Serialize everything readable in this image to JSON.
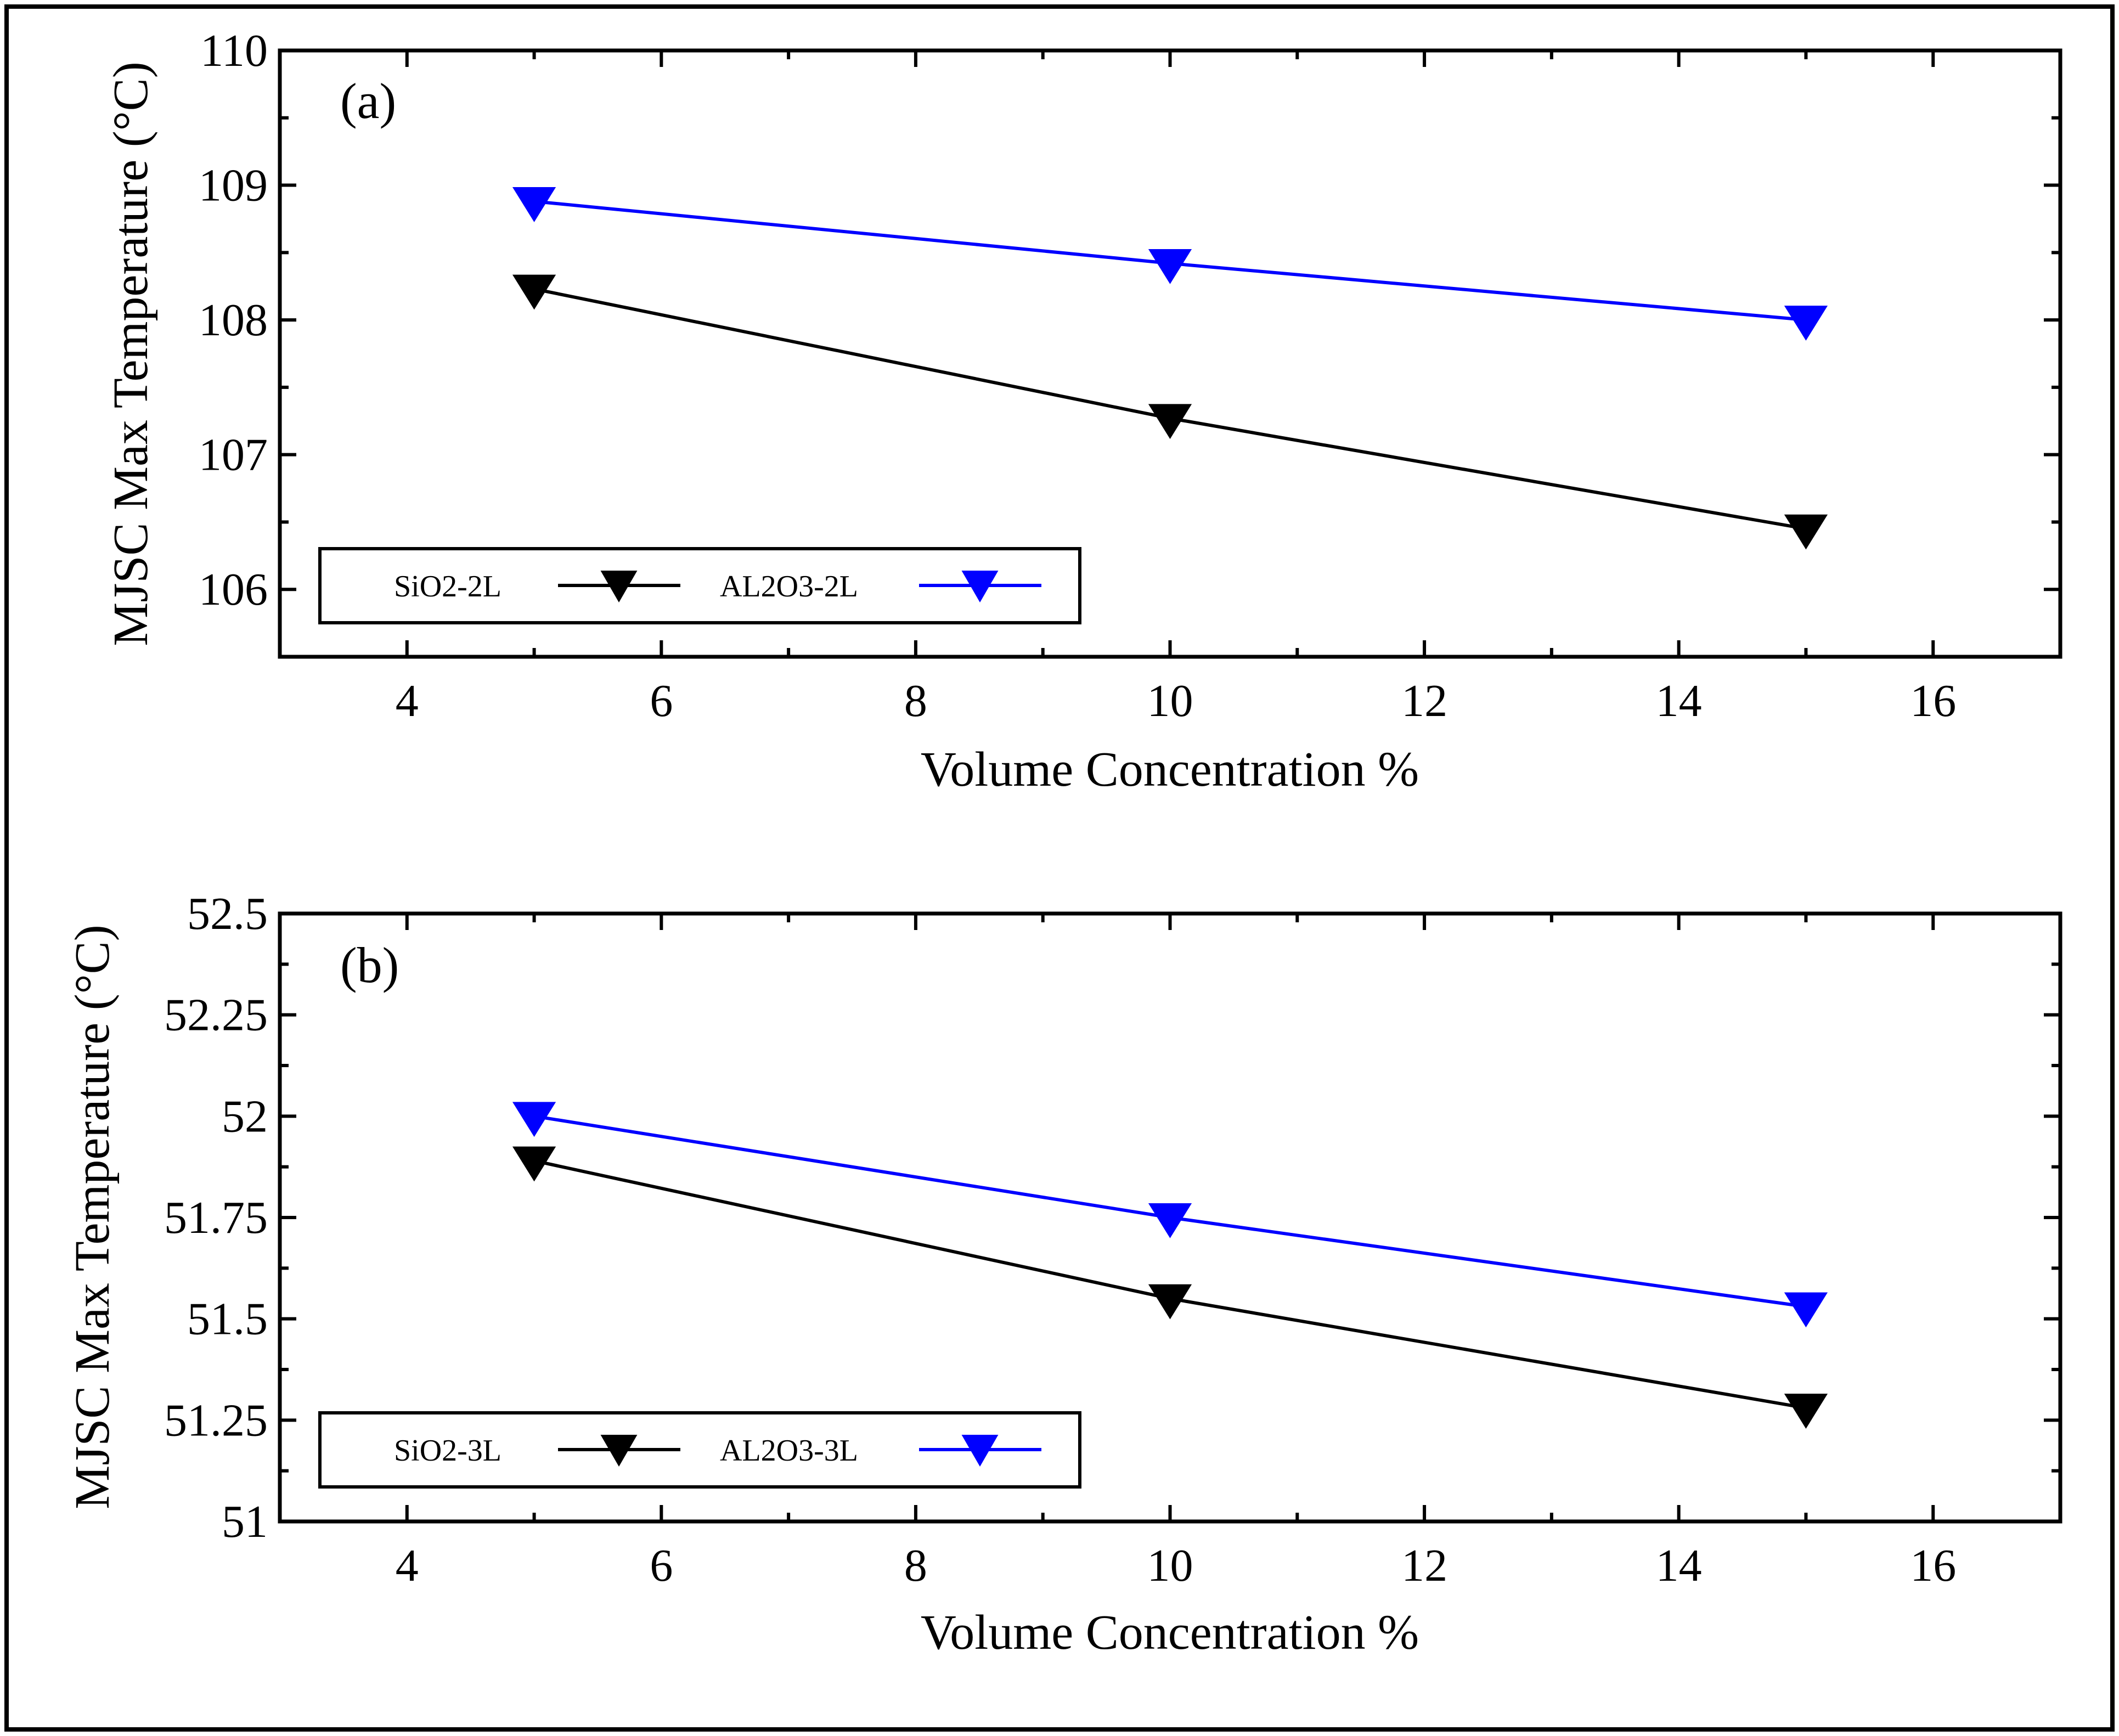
{
  "chart_data": [
    {
      "type": "line",
      "panel_label": "(a)",
      "xlabel": "Volume Concentration %",
      "ylabel": "MJSC Max Temperature (°C)",
      "xlim": [
        3,
        17
      ],
      "ylim": [
        105.5,
        110
      ],
      "xticks": [
        4,
        6,
        8,
        10,
        12,
        14,
        16
      ],
      "yticks": [
        106,
        107,
        108,
        109,
        110
      ],
      "x": [
        5,
        10,
        15
      ],
      "series": [
        {
          "name": "SiO2-2L",
          "color": "#000000",
          "marker": "down-triangle",
          "values": [
            108.23,
            107.27,
            106.45
          ]
        },
        {
          "name": "AL2O3-2L",
          "color": "#0000ff",
          "marker": "down-triangle",
          "values": [
            108.88,
            108.42,
            108.0
          ]
        }
      ],
      "legend": "bottom-left"
    },
    {
      "type": "line",
      "panel_label": "(b)",
      "xlabel": "Volume Concentration %",
      "ylabel": "MJSC Max Temperature (°C)",
      "xlim": [
        3,
        17
      ],
      "ylim": [
        51,
        52.5
      ],
      "xticks": [
        4,
        6,
        8,
        10,
        12,
        14,
        16
      ],
      "yticks": [
        51,
        51.25,
        51.5,
        51.75,
        52,
        52.25,
        52.5
      ],
      "ytick_labels": [
        "51",
        "51.25",
        "51.5",
        "51.75",
        "52",
        "52.25",
        "52.5"
      ],
      "x": [
        5,
        10,
        15
      ],
      "series": [
        {
          "name": "SiO2-3L",
          "color": "#000000",
          "marker": "down-triangle",
          "values": [
            51.89,
            51.55,
            51.28
          ]
        },
        {
          "name": "AL2O3-3L",
          "color": "#0000ff",
          "marker": "down-triangle",
          "values": [
            52.0,
            51.75,
            51.53
          ]
        }
      ],
      "legend": "bottom-left"
    }
  ]
}
